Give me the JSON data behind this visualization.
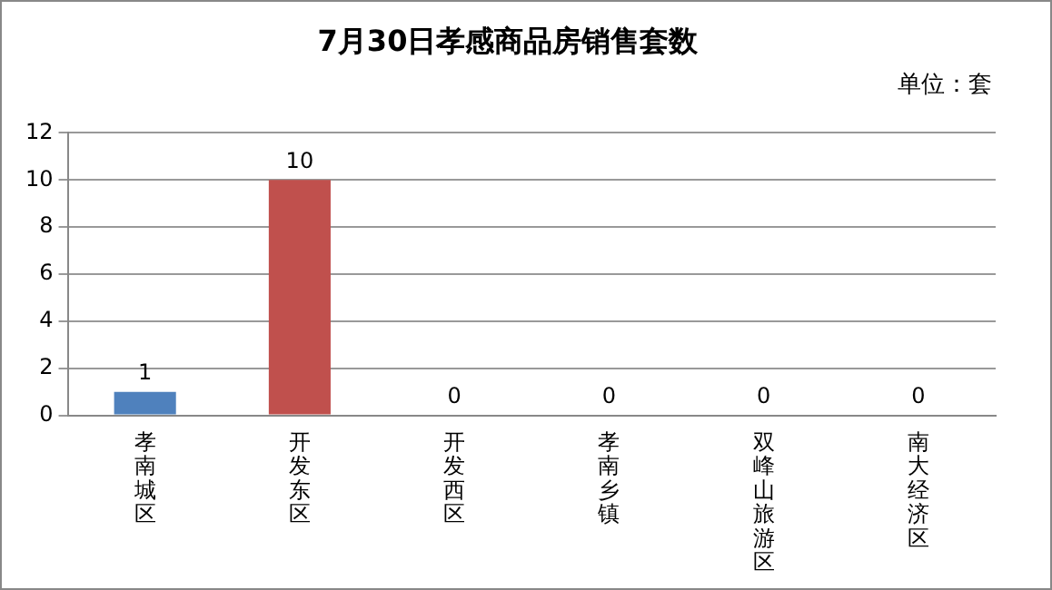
{
  "chart_data": {
    "type": "bar",
    "title": "7月30日孝感商品房销售套数",
    "annotations": [
      "单位：套"
    ],
    "categories": [
      "孝南城区",
      "开发东区",
      "开发西区",
      "孝南乡镇",
      "双峰山旅游区",
      "南大经济区"
    ],
    "values": [
      1,
      10,
      0,
      0,
      0,
      0
    ],
    "colors": [
      "#4f81bd",
      "#c0504d",
      "#4f81bd",
      "#4f81bd",
      "#4f81bd",
      "#4f81bd"
    ],
    "ylim": [
      0,
      12
    ],
    "yticks": [
      0,
      2,
      4,
      6,
      8,
      10,
      12
    ],
    "grid": "y",
    "data_labels": true,
    "legend": false
  }
}
